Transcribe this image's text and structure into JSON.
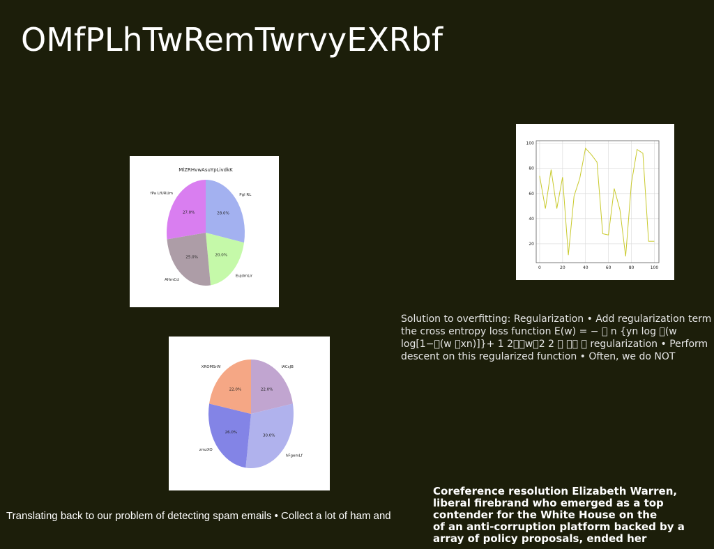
{
  "slide": {
    "title": "OMfPLhTwRemTwrvyEXRbf"
  },
  "text_blocks": {
    "regularization_lines": [
      "Solution to overfitting: Regularization • Add regularization term",
      "the cross entropy loss function E(w) = − \u0000 n {yn log \u0000(w",
      "log[1−\u0000(w \u0000xn)]}+ 1 2\u0000\u0000w\u00002 2 \u0000 \u0000\u0000 \u0000 regularization • Perform",
      "descent on this regularized function • Often, we do NOT"
    ],
    "spam_line": "Translating back to our problem of detecting spam emails • Collect a lot of ham and",
    "coreference_lines": [
      "Coreference resolution Elizabeth Warren,",
      "liberal firebrand who emerged as a top",
      "contender for the White House on the",
      "of an anti-corruption platform backed by a",
      "array of policy proposals, ended her"
    ]
  },
  "chart_data": [
    {
      "type": "pie",
      "title": "MlZRHvwAsuYpLivdkK",
      "labels": [
        "Pgl RL",
        "EujdmLir",
        "AHmCd",
        "fPa LfURUm"
      ],
      "values": [
        28.0,
        20.0,
        25.0,
        27.0
      ],
      "pct_labels": [
        "28.0%",
        "20.0%",
        "25.0%",
        "27.0%"
      ],
      "colors": [
        "#a3b1f0",
        "#c5f9a9",
        "#ad9da7",
        "#d97ef0"
      ]
    },
    {
      "type": "pie",
      "title": "",
      "labels": [
        "IACsJB",
        "hFgemLf",
        "zmzXO",
        "XROMSrW"
      ],
      "values": [
        22.0,
        30.0,
        26.0,
        22.0
      ],
      "pct_labels": [
        "22.0%",
        "30.0%",
        "26.0%",
        "22.0%"
      ],
      "colors": [
        "#c1a5d0",
        "#b0b2ed",
        "#8384e6",
        "#f5a785"
      ]
    },
    {
      "type": "line",
      "title": "",
      "x": [
        0,
        5,
        10,
        15,
        20,
        25,
        30,
        35,
        40,
        45,
        50,
        55,
        60,
        65,
        70,
        75,
        80,
        85,
        90,
        95,
        100
      ],
      "series": [
        {
          "values": [
            74,
            48,
            79,
            48,
            73,
            11,
            58,
            72,
            96,
            91,
            85,
            28,
            27,
            64,
            47,
            10,
            68,
            95,
            92,
            22,
            22
          ]
        }
      ],
      "xlim": [
        -3,
        104
      ],
      "ylim": [
        5,
        102
      ],
      "xticks": [
        "0",
        "20",
        "40",
        "60",
        "80",
        "100"
      ],
      "yticks": [
        "20",
        "40",
        "60",
        "80",
        "100"
      ],
      "line_color": "#c8c92a",
      "grid": true
    }
  ]
}
